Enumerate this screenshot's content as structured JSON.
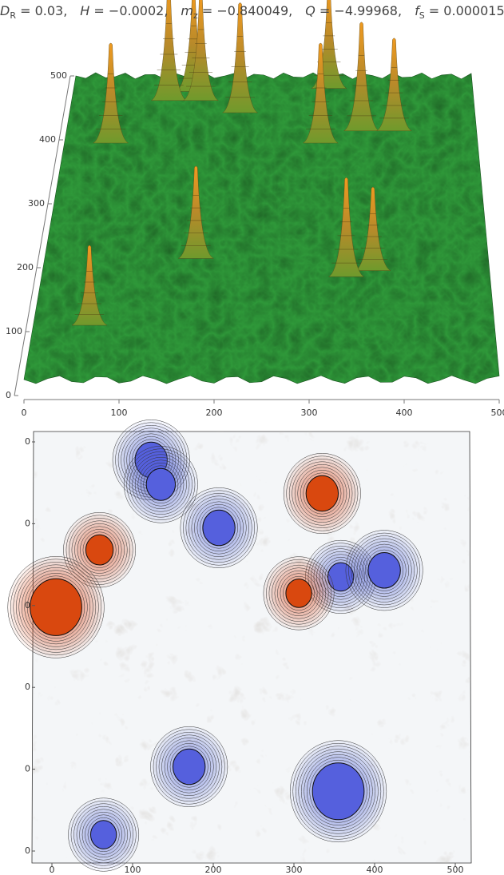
{
  "title": {
    "separator": "=",
    "params": [
      {
        "symbol": "D",
        "sub": "R",
        "value": "0.03"
      },
      {
        "symbol": "H",
        "sub": null,
        "value": "−0.0002"
      },
      {
        "symbol": "m",
        "sub": "z",
        "value": "−0.840049"
      },
      {
        "symbol": "Q",
        "sub": null,
        "value": "−4.99968"
      },
      {
        "symbol": "f",
        "sub": "S",
        "value": "0.000015"
      }
    ]
  },
  "chart_data": [
    {
      "type": "surface",
      "color": "#2f9a3a",
      "peak_color": "#e08a1e",
      "xlim": [
        0,
        500
      ],
      "ylim": [
        0,
        500
      ],
      "xticks": [
        0,
        100,
        200,
        300,
        400,
        500
      ],
      "yticks": [
        0,
        100,
        200,
        300,
        400,
        500
      ],
      "x": [
        60,
        170,
        340,
        370,
        55,
        120,
        150,
        160,
        210,
        320,
        310,
        360,
        400
      ],
      "y": [
        100,
        210,
        180,
        190,
        400,
        470,
        485,
        470,
        450,
        490,
        400,
        420,
        420
      ]
    },
    {
      "type": "contour",
      "xlim": [
        0,
        500
      ],
      "ylim": [
        0,
        500
      ],
      "xticks": [
        0,
        100,
        200,
        300,
        400,
        500
      ],
      "yticks": [
        {
          "value": 500,
          "label": "0"
        },
        {
          "value": 400,
          "label": "0"
        },
        {
          "value": 300,
          "label": "0"
        },
        {
          "value": 200,
          "label": "0"
        },
        {
          "value": 100,
          "label": "0"
        },
        {
          "value": 0,
          "label": "0"
        }
      ],
      "series": [
        {
          "name": "negative",
          "color": "#5560dd",
          "x": [
            123,
            135,
            207,
            358,
            412,
            170,
            355,
            64
          ],
          "y": [
            478,
            448,
            395,
            335,
            343,
            103,
            73,
            20
          ],
          "r": [
            20,
            18,
            20,
            16,
            20,
            20,
            32,
            16
          ]
        },
        {
          "name": "positive",
          "color": "#d9480f",
          "x": [
            335,
            59,
            306,
            5
          ],
          "y": [
            437,
            368,
            315,
            298
          ],
          "r": [
            20,
            17,
            16,
            32
          ]
        }
      ]
    }
  ]
}
